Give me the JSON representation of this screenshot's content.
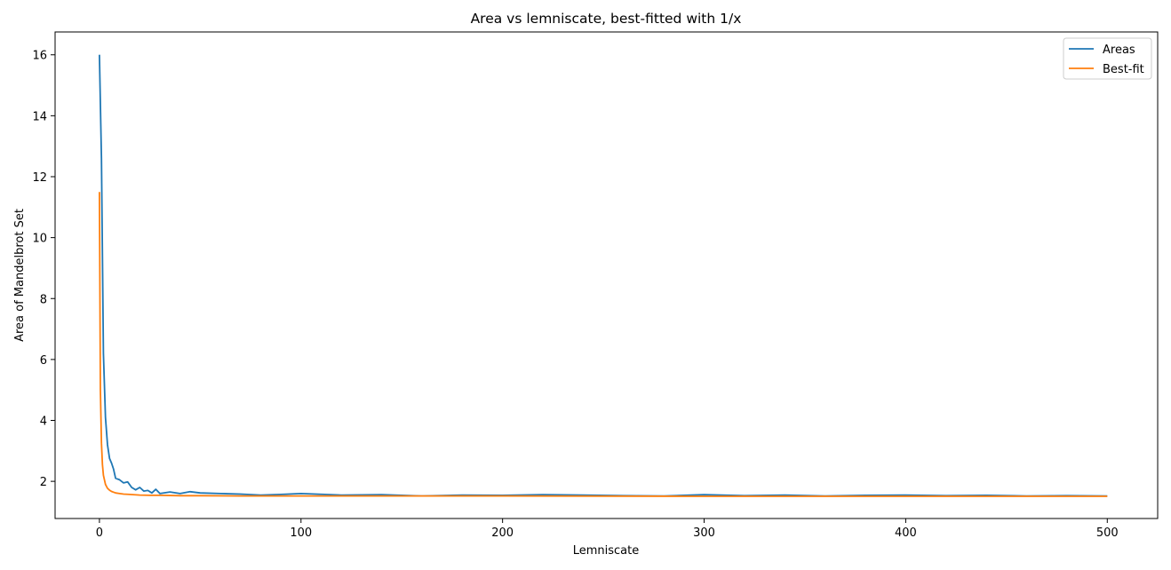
{
  "chart_data": {
    "type": "line",
    "title": "Area vs lemniscate, best-fitted with 1/x",
    "xlabel": "Lemniscate",
    "ylabel": "Area of Mandelbrot Set",
    "xlim": [
      -22,
      525
    ],
    "ylim": [
      0.78,
      16.75
    ],
    "xticks": [
      0,
      100,
      200,
      300,
      400,
      500
    ],
    "yticks": [
      2,
      4,
      6,
      8,
      10,
      12,
      14,
      16
    ],
    "grid": false,
    "legend_position": "top-right",
    "series": [
      {
        "name": "Areas",
        "color": "#1f77b4",
        "x": [
          0,
          1,
          2,
          3,
          4,
          5,
          6,
          7,
          8,
          10,
          12,
          14,
          16,
          18,
          20,
          22,
          24,
          26,
          28,
          30,
          35,
          40,
          45,
          50,
          60,
          70,
          80,
          90,
          100,
          120,
          140,
          160,
          180,
          200,
          220,
          240,
          260,
          280,
          300,
          320,
          340,
          360,
          380,
          400,
          420,
          440,
          460,
          480,
          500
        ],
        "values": [
          16.0,
          12.6,
          6.2,
          4.1,
          3.2,
          2.75,
          2.6,
          2.4,
          2.1,
          2.05,
          1.95,
          1.98,
          1.8,
          1.72,
          1.8,
          1.68,
          1.7,
          1.62,
          1.74,
          1.6,
          1.65,
          1.6,
          1.66,
          1.62,
          1.6,
          1.58,
          1.55,
          1.57,
          1.6,
          1.55,
          1.56,
          1.52,
          1.55,
          1.54,
          1.56,
          1.55,
          1.53,
          1.52,
          1.56,
          1.53,
          1.55,
          1.52,
          1.54,
          1.55,
          1.53,
          1.54,
          1.52,
          1.53,
          1.52
        ]
      },
      {
        "name": "Best-fit",
        "color": "#ff7f0e",
        "x": [
          0,
          0.5,
          1,
          1.5,
          2,
          3,
          4,
          5,
          6,
          8,
          10,
          12,
          15,
          20,
          25,
          30,
          40,
          50,
          70,
          100,
          150,
          200,
          300,
          400,
          500
        ],
        "values": [
          11.5,
          5.0,
          3.25,
          2.55,
          2.2,
          1.9,
          1.77,
          1.71,
          1.67,
          1.62,
          1.6,
          1.58,
          1.57,
          1.55,
          1.54,
          1.54,
          1.53,
          1.53,
          1.52,
          1.52,
          1.52,
          1.52,
          1.51,
          1.51,
          1.51
        ]
      }
    ]
  }
}
